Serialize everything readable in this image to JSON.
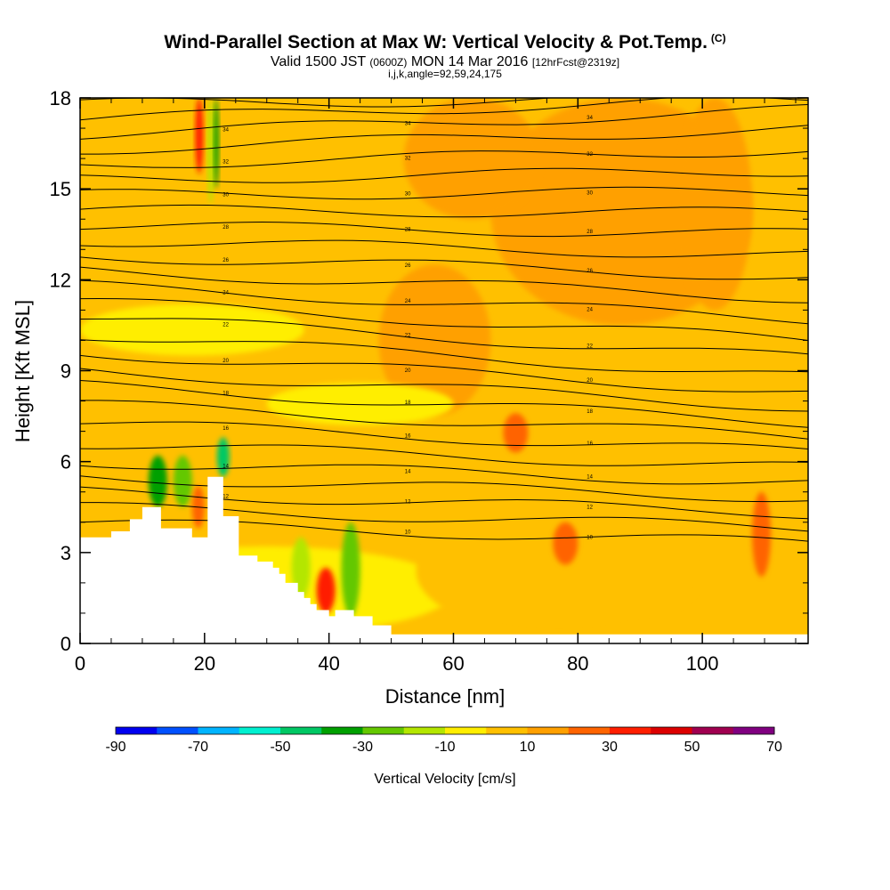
{
  "title": {
    "main": "Wind-Parallel Section at Max W: Vertical Velocity & Pot.Temp.",
    "copyright": "(C)",
    "valid_pre": "Valid 1500 JST",
    "valid_utc": "(0600Z)",
    "valid_post": "MON 14 Mar 2016",
    "fcst": "[12hrFcst@2319z]",
    "indices": "i,j,k,angle=92,59,24,175"
  },
  "chart_data": {
    "type": "heatmap",
    "xlabel": "Distance [nm]",
    "ylabel": "Height [Kft MSL]",
    "xlim": [
      0,
      117
    ],
    "ylim": [
      0,
      18
    ],
    "x_ticks": [
      "0",
      "20",
      "40",
      "60",
      "80",
      "100"
    ],
    "y_ticks": [
      "0",
      "3",
      "6",
      "9",
      "12",
      "15",
      "18"
    ],
    "colorbar": {
      "label": "Vertical Velocity [cm/s]",
      "range": [
        -90,
        70
      ],
      "tick_labels": [
        "-90",
        "-70",
        "-50",
        "-30",
        "-10",
        "10",
        "30",
        "50",
        "70"
      ],
      "colors": [
        "#0000f0",
        "#0050ff",
        "#00b4ff",
        "#00f0d0",
        "#00c864",
        "#00a000",
        "#64c800",
        "#b4e600",
        "#ffee00",
        "#ffc000",
        "#ffa000",
        "#ff6400",
        "#ff1e00",
        "#dc0000",
        "#a00050",
        "#800080"
      ]
    },
    "terrain": {
      "x": [
        0,
        5,
        5,
        8,
        8,
        10,
        10,
        11,
        11,
        12,
        12,
        13,
        13,
        18,
        18,
        20.5,
        20.5,
        23,
        23,
        25.5,
        25.5,
        28.5,
        28.5,
        31,
        31,
        32,
        32,
        33,
        33,
        35,
        35,
        36,
        36,
        37,
        37,
        38,
        38,
        40,
        40,
        41,
        41,
        44,
        44,
        47,
        47,
        50,
        50,
        117
      ],
      "height": [
        3.5,
        3.5,
        3.7,
        3.7,
        4.1,
        4.1,
        4.5,
        4.5,
        4.5,
        4.5,
        4.5,
        4.5,
        3.8,
        3.8,
        3.5,
        3.5,
        5.5,
        5.5,
        4.2,
        4.2,
        2.9,
        2.9,
        2.7,
        2.7,
        2.5,
        2.5,
        2.3,
        2.3,
        2.0,
        2.0,
        1.7,
        1.7,
        1.5,
        1.5,
        1.3,
        1.3,
        1.1,
        1.1,
        0.9,
        0.9,
        1.1,
        1.1,
        0.9,
        0.9,
        0.6,
        0.6,
        0.3,
        0.3
      ]
    },
    "theta_contours": {
      "start_height": [
        4.0,
        4.5,
        5.0,
        5.5,
        6.0,
        6.6,
        7.3,
        7.9,
        8.5,
        9.0,
        9.6,
        10.2,
        10.8,
        11.3,
        11.8,
        12.3,
        12.8,
        13.3,
        13.8,
        14.3,
        14.8,
        15.3,
        15.8,
        16.3,
        16.8,
        17.3,
        17.8
      ],
      "end_height": [
        3.3,
        3.8,
        4.3,
        4.8,
        5.3,
        5.8,
        6.3,
        6.8,
        7.3,
        7.8,
        8.3,
        8.8,
        9.4,
        10.0,
        10.7,
        11.4,
        12.1,
        12.8,
        13.5,
        14.2,
        14.9,
        15.6,
        16.3,
        17.0,
        17.6,
        18.0,
        18.0
      ],
      "labels": [
        "10",
        "12",
        "14",
        "16",
        "18",
        "20",
        "22",
        "24",
        "26",
        "28",
        "30",
        "32",
        "34"
      ]
    },
    "regions": [
      {
        "x": [
          48,
          66
        ],
        "y": [
          7.5,
          12.5
        ],
        "value": 12
      },
      {
        "x": [
          66,
          108
        ],
        "y": [
          10.5,
          18
        ],
        "value": 15
      },
      {
        "x": [
          52,
          74
        ],
        "y": [
          14,
          18
        ],
        "value": 13
      },
      {
        "x": [
          96,
          108
        ],
        "y": [
          11,
          18
        ],
        "value": 18
      },
      {
        "x": [
          0,
          60
        ],
        "y": [
          0.3,
          3.2
        ],
        "value": -4
      },
      {
        "x": [
          54,
          100
        ],
        "y": [
          0.3,
          4.5
        ],
        "value": 5
      },
      {
        "x": [
          0,
          36
        ],
        "y": [
          9.5,
          11.2
        ],
        "value": -2
      },
      {
        "x": [
          30,
          60
        ],
        "y": [
          7.2,
          8.6
        ],
        "value": -3
      },
      {
        "x": [
          18.5,
          19.8
        ],
        "y": [
          15.5,
          18
        ],
        "value": 38
      },
      {
        "x": [
          20.5,
          21.5
        ],
        "y": [
          14.5,
          18
        ],
        "value": -12
      },
      {
        "x": [
          21.5,
          22.3
        ],
        "y": [
          15,
          18
        ],
        "value": -32
      },
      {
        "x": [
          11,
          14
        ],
        "y": [
          4.5,
          6.2
        ],
        "value": -32
      },
      {
        "x": [
          15,
          18
        ],
        "y": [
          4.5,
          6.2
        ],
        "value": -22
      },
      {
        "x": [
          18,
          20
        ],
        "y": [
          3.8,
          5.2
        ],
        "value": 28
      },
      {
        "x": [
          22,
          24
        ],
        "y": [
          5.5,
          6.8
        ],
        "value": -42
      },
      {
        "x": [
          34,
          37
        ],
        "y": [
          1.5,
          3.5
        ],
        "value": -14
      },
      {
        "x": [
          38,
          41
        ],
        "y": [
          1.0,
          2.5
        ],
        "value": 38
      },
      {
        "x": [
          42,
          45
        ],
        "y": [
          0.9,
          4.0
        ],
        "value": -22
      },
      {
        "x": [
          76,
          80
        ],
        "y": [
          2.6,
          4.0
        ],
        "value": 22
      },
      {
        "x": [
          108,
          111
        ],
        "y": [
          2.2,
          5.0
        ],
        "value": 22
      },
      {
        "x": [
          68,
          72
        ],
        "y": [
          6.3,
          7.6
        ],
        "value": 22
      }
    ]
  }
}
